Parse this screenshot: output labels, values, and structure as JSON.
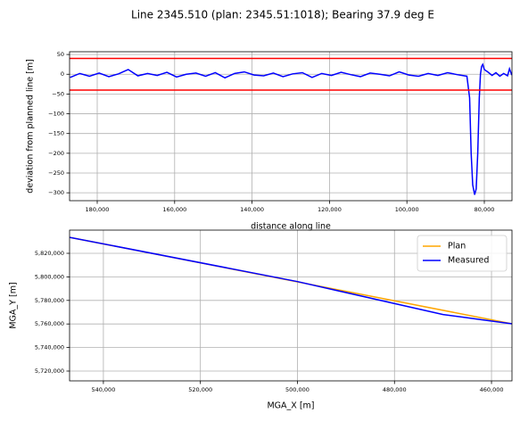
{
  "chart_data": [
    {
      "type": "line",
      "title": "Line 2345.510 (plan: 2345.51:1018); Bearing 37.9 deg E",
      "x_label": "distance along line",
      "y_label": "deviation from planned line [m]",
      "xlim": [
        187143,
        72857
      ],
      "ylim": [
        -320,
        57
      ],
      "xticks": [
        {
          "value": 180000,
          "label": "180,000"
        },
        {
          "value": 160000,
          "label": "160,000"
        },
        {
          "value": 140000,
          "label": "140,000"
        },
        {
          "value": 120000,
          "label": "120,000"
        },
        {
          "value": 100000,
          "label": "100,000"
        },
        {
          "value": 80000,
          "label": "80,000"
        }
      ],
      "yticks": [
        50,
        0,
        {
          "value": -50,
          "label": "−50"
        },
        {
          "value": -100,
          "label": "−100"
        },
        {
          "value": -150,
          "label": "−150"
        },
        {
          "value": -200,
          "label": "−200"
        },
        {
          "value": -250,
          "label": "−250"
        },
        {
          "value": -300,
          "label": "−300"
        }
      ],
      "grid": true,
      "series": [
        {
          "color": "#0000ff",
          "x": [
            187000,
            184500,
            182000,
            179500,
            177000,
            174500,
            172000,
            169500,
            167000,
            164500,
            162000,
            159500,
            157000,
            154500,
            152000,
            149500,
            147000,
            144500,
            142000,
            139500,
            137000,
            134500,
            132000,
            129500,
            127000,
            124500,
            122000,
            119500,
            117000,
            114500,
            112000,
            109500,
            107000,
            104500,
            102000,
            99500,
            97000,
            94500,
            92000,
            89500,
            87000,
            84500,
            83800,
            83400,
            83000,
            82500,
            82100,
            81700,
            81300,
            81000,
            80700,
            80400,
            80000,
            79000,
            78000,
            77000,
            76000,
            75000,
            74000,
            73500,
            72900
          ],
          "values": [
            -8,
            2,
            -5,
            3,
            -6,
            1,
            12,
            -4,
            2,
            -3,
            5,
            -7,
            0,
            3,
            -5,
            4,
            -9,
            2,
            6,
            -2,
            -4,
            3,
            -6,
            1,
            4,
            -8,
            2,
            -3,
            5,
            -1,
            -6,
            3,
            0,
            -4,
            6,
            -2,
            -5,
            2,
            -3,
            4,
            -1,
            -5,
            -60,
            -200,
            -280,
            -305,
            -290,
            -200,
            -60,
            0,
            20,
            25,
            12,
            5,
            -3,
            4,
            -5,
            2,
            -4,
            14,
            -2
          ]
        },
        {
          "color": "#ff0000",
          "x": [
            187143,
            72857
          ],
          "values": [
            40,
            40
          ]
        },
        {
          "color": "#ff0000",
          "x": [
            187143,
            72857
          ],
          "values": [
            -40,
            -40
          ]
        }
      ]
    },
    {
      "type": "line",
      "x_label": "MGA_X [m]",
      "y_label": "MGA_Y [m]",
      "xlim": [
        546970,
        455780
      ],
      "ylim": [
        5711670,
        5839700
      ],
      "xticks": [
        {
          "value": 540000,
          "label": "540,000"
        },
        {
          "value": 520000,
          "label": "520,000"
        },
        {
          "value": 500000,
          "label": "500,000"
        },
        {
          "value": 480000,
          "label": "480,000"
        },
        {
          "value": 460000,
          "label": "460,000"
        }
      ],
      "yticks": [
        {
          "value": 5820000,
          "label": "5,820,000"
        },
        {
          "value": 5800000,
          "label": "5,800,000"
        },
        {
          "value": 5780000,
          "label": "5,780,000"
        },
        {
          "value": 5760000,
          "label": "5,760,000"
        },
        {
          "value": 5740000,
          "label": "5,740,000"
        },
        {
          "value": 5720000,
          "label": "5,720,000"
        }
      ],
      "grid": true,
      "legend": "upper right",
      "series": [
        {
          "name": "Plan",
          "color": "#ffa500",
          "x": [
            546970,
            455780
          ],
          "values": [
            5833600,
            5760150
          ]
        },
        {
          "name": "Measured",
          "color": "#0000ff",
          "x": [
            546970,
            500000,
            470000,
            466000,
            462000,
            455780
          ],
          "values": [
            5833600,
            5796000,
            5768000,
            5765800,
            5763600,
            5760150
          ]
        }
      ]
    }
  ]
}
